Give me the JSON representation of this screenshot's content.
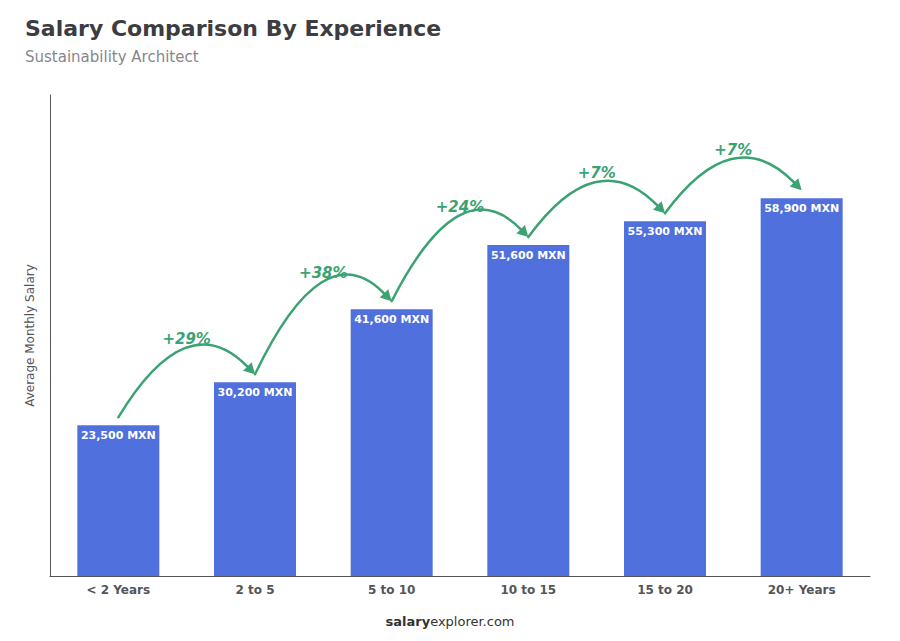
{
  "chart_data": {
    "type": "bar",
    "title": "Salary Comparison By Experience",
    "subtitle": "Sustainability Architect",
    "categories": [
      "< 2 Years",
      "2 to 5",
      "5 to 10",
      "10 to 15",
      "15 to 20",
      "20+ Years"
    ],
    "values": [
      23500,
      30200,
      41600,
      51600,
      55300,
      58900
    ],
    "value_labels": [
      "23,500 MXN",
      "30,200 MXN",
      "41,600 MXN",
      "51,600 MXN",
      "55,300 MXN",
      "58,900 MXN"
    ],
    "data_labels": true,
    "y_label": "Average Monthly Salary",
    "ylim": [
      0,
      75000
    ],
    "tick_labels": "x",
    "grid": false,
    "annotations": [
      {
        "text": "+29%",
        "between": [
          "< 2 Years",
          "2 to 5"
        ]
      },
      {
        "text": "+38%",
        "between": [
          "2 to 5",
          "5 to 10"
        ]
      },
      {
        "text": "+24%",
        "between": [
          "5 to 10",
          "10 to 15"
        ]
      },
      {
        "text": "+7%",
        "between": [
          "10 to 15",
          "15 to 20"
        ]
      },
      {
        "text": "+7%",
        "between": [
          "15 to 20",
          "20+ Years"
        ]
      }
    ],
    "footer": [
      "salary",
      "explorer.com"
    ]
  }
}
